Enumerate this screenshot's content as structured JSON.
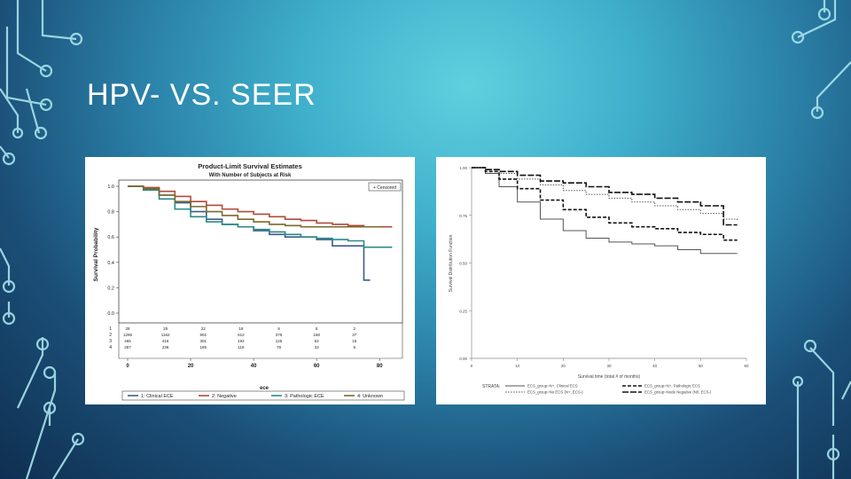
{
  "slide": {
    "title": "HPV- VS. SEER"
  },
  "chart_data": [
    {
      "type": "line",
      "title": "Product-Limit Survival Estimates",
      "subtitle": "With Number of Subjects at Risk",
      "xlabel": "",
      "ylabel": "Survival Probability",
      "xlim": [
        0,
        85
      ],
      "ylim": [
        0,
        1.0
      ],
      "x_ticks": [
        "0",
        "20",
        "40",
        "60",
        "80"
      ],
      "y_ticks": [
        "0.0",
        "0.2",
        "0.4",
        "0.6",
        "0.8",
        "1.0"
      ],
      "censored_label": "+ Censored",
      "legend_title": "ece",
      "legend_position": "bottom",
      "series": [
        {
          "name": "1: Clinical ECE",
          "color": "#3b5b8c",
          "x": [
            0,
            5,
            10,
            15,
            20,
            25,
            30,
            35,
            40,
            45,
            50,
            55,
            60,
            65,
            68,
            70,
            75,
            77
          ],
          "y": [
            1.0,
            0.98,
            0.93,
            0.87,
            0.8,
            0.74,
            0.7,
            0.68,
            0.65,
            0.62,
            0.6,
            0.6,
            0.58,
            0.53,
            0.53,
            0.53,
            0.26,
            0.26
          ]
        },
        {
          "name": "2: Negative",
          "color": "#b04a3a",
          "x": [
            0,
            5,
            10,
            15,
            20,
            25,
            30,
            35,
            40,
            45,
            50,
            55,
            60,
            65,
            70,
            75,
            80,
            84
          ],
          "y": [
            1.0,
            0.99,
            0.96,
            0.92,
            0.88,
            0.85,
            0.82,
            0.8,
            0.78,
            0.76,
            0.74,
            0.73,
            0.71,
            0.7,
            0.69,
            0.68,
            0.68,
            0.68
          ]
        },
        {
          "name": "3: Pathologic ECE",
          "color": "#2a8a8a",
          "x": [
            0,
            5,
            10,
            15,
            20,
            25,
            30,
            35,
            40,
            45,
            50,
            55,
            60,
            65,
            70,
            75,
            80,
            84
          ],
          "y": [
            1.0,
            0.97,
            0.9,
            0.82,
            0.76,
            0.72,
            0.7,
            0.68,
            0.66,
            0.64,
            0.62,
            0.6,
            0.59,
            0.58,
            0.57,
            0.52,
            0.52,
            0.52
          ]
        },
        {
          "name": "4: Unknown",
          "color": "#7a6a2a",
          "x": [
            0,
            5,
            10,
            15,
            20,
            25,
            30,
            35,
            40,
            45,
            50,
            55,
            60,
            65,
            70,
            75,
            80
          ],
          "y": [
            1.0,
            0.98,
            0.93,
            0.88,
            0.84,
            0.8,
            0.77,
            0.74,
            0.72,
            0.7,
            0.69,
            0.68,
            0.68,
            0.68,
            0.68,
            0.68,
            0.68
          ]
        }
      ],
      "at_risk": {
        "rows": [
          "1",
          "2",
          "3",
          "4"
        ],
        "values": [
          [
            "28",
            "25",
            "22",
            "18",
            "8",
            "5",
            "2"
          ],
          [
            "1295",
            "1162",
            "901",
            "612",
            "375",
            "168",
            "37"
          ],
          [
            "465",
            "416",
            "301",
            "192",
            "125",
            "53",
            "15"
          ],
          [
            "267",
            "236",
            "185",
            "118",
            "78",
            "33",
            "8"
          ]
        ]
      }
    },
    {
      "type": "line",
      "title": "",
      "xlabel": "Survival time (total # of months)",
      "ylabel": "Survival Distribution Function",
      "xlim": [
        0,
        60
      ],
      "ylim": [
        0,
        1.0
      ],
      "x_ticks": [
        "0",
        "10",
        "20",
        "30",
        "40",
        "50",
        "60"
      ],
      "y_ticks": [
        "0.00",
        "0.25",
        "0.50",
        "0.75",
        "1.00"
      ],
      "legend_title": "STRATA:",
      "legend_position": "bottom",
      "series": [
        {
          "name": "ECS_group=N+, Clinical ECS",
          "style": "solid",
          "color": "#555555",
          "x": [
            0,
            3,
            6,
            10,
            15,
            20,
            25,
            30,
            35,
            40,
            45,
            50,
            55,
            58
          ],
          "y": [
            1.0,
            0.97,
            0.9,
            0.82,
            0.73,
            0.67,
            0.63,
            0.61,
            0.6,
            0.59,
            0.57,
            0.55,
            0.55,
            0.55
          ]
        },
        {
          "name": "ECS_group=N+, Pathologic ECS",
          "style": "dashed",
          "color": "#111111",
          "x": [
            0,
            3,
            6,
            10,
            15,
            20,
            25,
            30,
            35,
            40,
            45,
            50,
            55,
            58
          ],
          "y": [
            1.0,
            0.98,
            0.94,
            0.89,
            0.83,
            0.78,
            0.74,
            0.71,
            0.69,
            0.68,
            0.66,
            0.65,
            0.62,
            0.62
          ]
        },
        {
          "name": "ECS_group=No ECS (N+, ECS-)",
          "style": "dotted",
          "color": "#555555",
          "x": [
            0,
            3,
            6,
            10,
            15,
            20,
            25,
            30,
            35,
            40,
            45,
            50,
            55,
            58
          ],
          "y": [
            1.0,
            0.99,
            0.97,
            0.94,
            0.91,
            0.88,
            0.86,
            0.84,
            0.82,
            0.8,
            0.78,
            0.76,
            0.73,
            0.72
          ]
        },
        {
          "name": "ECS_group=Node Negative (N0, ECS-)",
          "style": "longdash",
          "color": "#111111",
          "x": [
            0,
            3,
            6,
            10,
            15,
            20,
            25,
            30,
            35,
            40,
            45,
            50,
            54,
            55,
            58
          ],
          "y": [
            1.0,
            0.99,
            0.98,
            0.96,
            0.93,
            0.92,
            0.9,
            0.87,
            0.86,
            0.84,
            0.82,
            0.8,
            0.8,
            0.7,
            0.7
          ]
        }
      ]
    }
  ]
}
